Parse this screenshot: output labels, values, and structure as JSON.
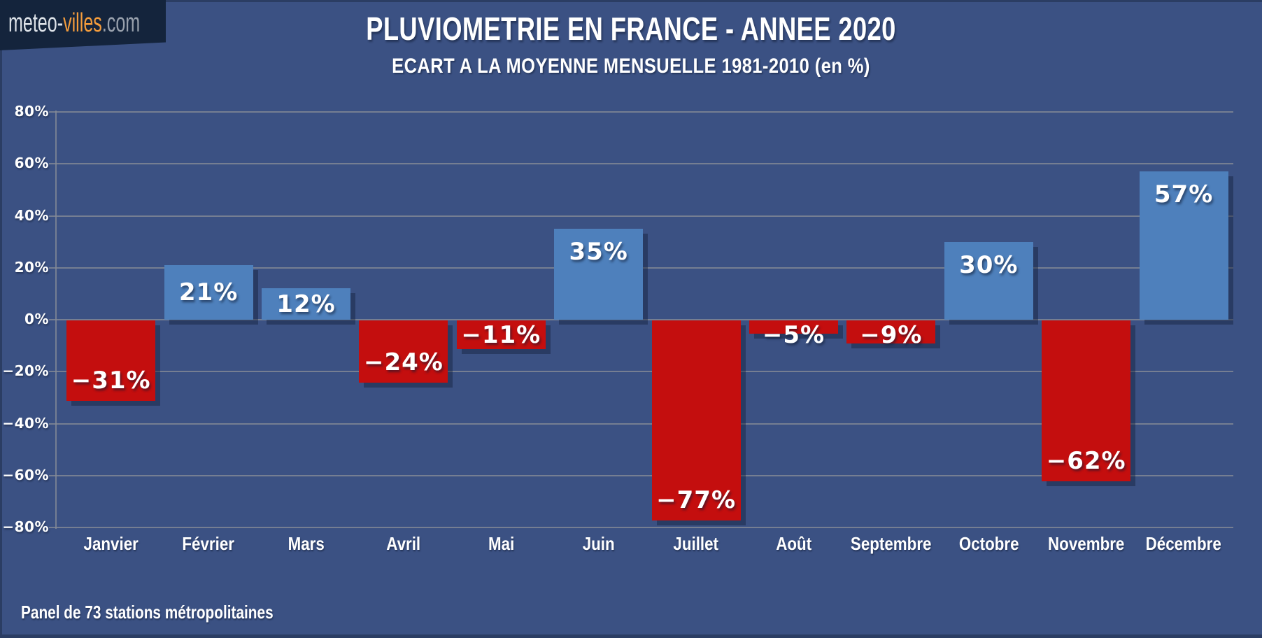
{
  "page": {
    "background_color": "#3B5183",
    "edge_color": "#2B3D63"
  },
  "logo": {
    "part_meteo": "meteo-",
    "part_villes": "villes",
    "part_com": ".com",
    "background_color": "#14243C",
    "orange_color": "#F39C3C"
  },
  "header": {
    "title": "PLUVIOMETRIE EN FRANCE - ANNEE 2020",
    "subtitle": "ECART A LA MOYENNE MENSUELLE 1981-2010 (en %)"
  },
  "footer": {
    "note": "Panel de 73 stations métropolitaines"
  },
  "chart_data": {
    "type": "bar",
    "title": "PLUVIOMETRIE EN FRANCE - ANNEE 2020",
    "subtitle": "ECART A LA MOYENNE MENSUELLE 1981-2010 (en %)",
    "categories": [
      "Janvier",
      "Février",
      "Mars",
      "Avril",
      "Mai",
      "Juin",
      "Juillet",
      "Août",
      "Septembre",
      "Octobre",
      "Novembre",
      "Décembre"
    ],
    "values": [
      -31,
      21,
      12,
      -24,
      -11,
      35,
      -77,
      -5,
      -9,
      30,
      -62,
      57
    ],
    "value_labels": [
      "−31%",
      "21%",
      "12%",
      "−24%",
      "−11%",
      "35%",
      "−77%",
      "−5%",
      "−9%",
      "30%",
      "−62%",
      "57%"
    ],
    "ylabel": "",
    "xlabel": "",
    "ylim": [
      -80,
      80
    ],
    "yticks": [
      {
        "value": 80,
        "label": "80%"
      },
      {
        "value": 60,
        "label": "60%"
      },
      {
        "value": 40,
        "label": "40%"
      },
      {
        "value": 20,
        "label": "20%"
      },
      {
        "value": 0,
        "label": "0%"
      },
      {
        "value": -20,
        "label": "−20%"
      },
      {
        "value": -40,
        "label": "−40%"
      },
      {
        "value": -60,
        "label": "−60%"
      },
      {
        "value": -80,
        "label": "−80%"
      }
    ],
    "grid": true,
    "legend": false,
    "positive_color": "#4E80BC",
    "negative_color": "#C40E0E",
    "gridline_color": "#848A96",
    "annotation": "Panel de 73 stations métropolitaines"
  }
}
